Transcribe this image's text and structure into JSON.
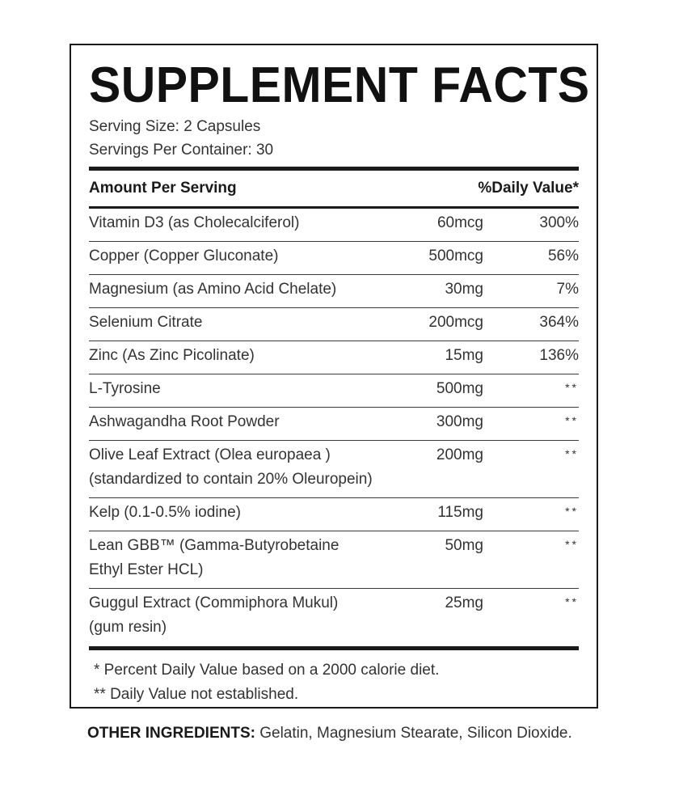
{
  "title": "SUPPLEMENT FACTS",
  "serving_size": "Serving Size: 2 Capsules",
  "servings_per_container": "Servings Per Container: 30",
  "header": {
    "amount_label": "Amount Per Serving",
    "dv_label": "%Daily Value*"
  },
  "rows": [
    {
      "name": [
        "Vitamin D3 (as Cholecalciferol)"
      ],
      "amount": "60mcg",
      "dv": "300%"
    },
    {
      "name": [
        "Copper (Copper Gluconate)"
      ],
      "amount": "500mcg",
      "dv": "56%"
    },
    {
      "name": [
        "Magnesium (as Amino Acid Chelate)"
      ],
      "amount": "30mg",
      "dv": "7%"
    },
    {
      "name": [
        "Selenium Citrate"
      ],
      "amount": "200mcg",
      "dv": "364%"
    },
    {
      "name": [
        "Zinc (As Zinc Picolinate)"
      ],
      "amount": "15mg",
      "dv": "136%"
    },
    {
      "name": [
        "L-Tyrosine"
      ],
      "amount": "500mg",
      "dv": "**"
    },
    {
      "name": [
        "Ashwagandha Root Powder"
      ],
      "amount": "300mg",
      "dv": "**"
    },
    {
      "name": [
        "Olive Leaf Extract (Olea europaea )",
        "(standardized to contain 20% Oleuropein)"
      ],
      "amount": "200mg",
      "dv": "**"
    },
    {
      "name": [
        "Kelp (0.1-0.5% iodine)"
      ],
      "amount": "115mg",
      "dv": "**"
    },
    {
      "name": [
        "Lean GBB™ (Gamma-Butyrobetaine",
        "Ethyl Ester HCL)"
      ],
      "amount": "50mg",
      "dv": "**"
    },
    {
      "name": [
        "Guggul Extract (Commiphora Mukul)",
        "(gum resin)"
      ],
      "amount": "25mg",
      "dv": "**"
    }
  ],
  "footnotes": {
    "line1": "* Percent Daily Value based on a 2000 calorie diet.",
    "line2": "** Daily Value not established."
  },
  "other_ingredients": {
    "label": "OTHER INGREDIENTS:",
    "text": " Gelatin, Magnesium Stearate, Silicon Dioxide."
  }
}
